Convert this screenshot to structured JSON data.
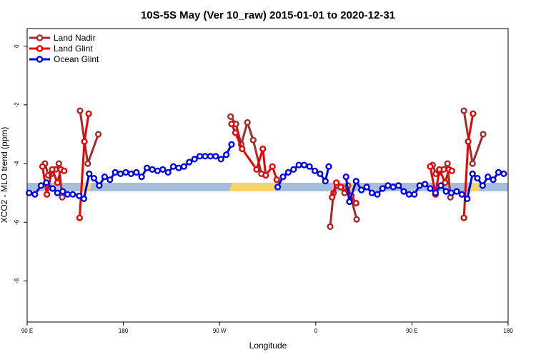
{
  "chart_data": {
    "type": "line",
    "title": "10S-5S May (Ver 10_raw)   2015-01-01 to 2020-12-31",
    "xlabel": "Longitude",
    "ylabel": "XCO2 - MLO trend (ppm)",
    "xlim": [
      0,
      100
    ],
    "ylim": [
      -9.4,
      0.6
    ],
    "x_ticks": [
      {
        "pos": 0,
        "label": "90 E"
      },
      {
        "pos": 20,
        "label": "180"
      },
      {
        "pos": 40,
        "label": "90 W"
      },
      {
        "pos": 60,
        "label": "0"
      },
      {
        "pos": 80,
        "label": "90 E"
      },
      {
        "pos": 100,
        "label": "180"
      }
    ],
    "y_ticks": [
      0,
      -2,
      -4,
      -6,
      -8
    ],
    "legend_position": "top-left",
    "grid": false,
    "band": {
      "y": -4.8,
      "color": "#a5bedb",
      "highlight_color": "#f5d56a",
      "highlights": [
        [
          11.0,
          13.5
        ],
        [
          42.0,
          52.0
        ],
        [
          66.0,
          68.0
        ],
        [
          92.0,
          94.5
        ]
      ]
    },
    "series": [
      {
        "name": "Land Nadir",
        "color": "#a52a2a",
        "segments": [
          [
            [
              3.7,
              -4.0
            ],
            [
              4.4,
              -4.4
            ],
            [
              5.1,
              -4.35
            ],
            [
              5.9,
              -4.2
            ],
            [
              6.6,
              -4.0
            ],
            [
              7.3,
              -5.15
            ]
          ],
          [
            [
              11.0,
              -2.2
            ],
            [
              12.6,
              -4.0
            ],
            [
              14.8,
              -3.0
            ]
          ],
          [
            [
              42.3,
              -2.4
            ],
            [
              43.4,
              -2.65
            ],
            [
              44.5,
              -3.35
            ],
            [
              45.8,
              -2.6
            ],
            [
              47.0,
              -3.2
            ],
            [
              48.7,
              -4.35
            ]
          ],
          [
            [
              63.0,
              -6.15
            ],
            [
              63.7,
              -5.0
            ],
            [
              64.4,
              -4.75
            ],
            [
              65.3,
              -4.8
            ],
            [
              66.0,
              -5.0
            ],
            [
              66.7,
              -4.75
            ],
            [
              68.5,
              -5.9
            ]
          ],
          [
            [
              84.3,
              -4.05
            ],
            [
              85.0,
              -4.35
            ],
            [
              85.7,
              -4.3
            ],
            [
              86.6,
              -4.2
            ],
            [
              87.4,
              -4.0
            ],
            [
              88.0,
              -5.15
            ]
          ],
          [
            [
              90.8,
              -2.2
            ],
            [
              92.6,
              -4.0
            ],
            [
              94.8,
              -3.0
            ]
          ]
        ]
      },
      {
        "name": "Land Glint",
        "color": "#ee0000",
        "segments": [
          [
            [
              3.2,
              -4.1
            ],
            [
              4.1,
              -5.05
            ],
            [
              5.2,
              -4.2
            ],
            [
              6.3,
              -4.65
            ],
            [
              7.0,
              -4.2
            ],
            [
              7.7,
              -4.25
            ]
          ],
          [
            [
              10.9,
              -5.85
            ],
            [
              11.9,
              -3.25
            ],
            [
              12.8,
              -2.3
            ]
          ],
          [
            [
              42.5,
              -2.65
            ],
            [
              43.3,
              -2.95
            ],
            [
              44.7,
              -3.5
            ],
            [
              47.7,
              -4.2
            ],
            [
              49.0,
              -3.5
            ],
            [
              49.6,
              -4.4
            ],
            [
              51.0,
              -4.1
            ],
            [
              51.9,
              -4.55
            ]
          ],
          [
            [
              63.4,
              -5.15
            ],
            [
              64.3,
              -4.65
            ],
            [
              65.2,
              -4.8
            ],
            [
              67.4,
              -5.1
            ],
            [
              68.4,
              -5.35
            ]
          ],
          [
            [
              83.8,
              -4.1
            ],
            [
              84.9,
              -5.05
            ],
            [
              85.7,
              -4.2
            ],
            [
              86.9,
              -4.65
            ],
            [
              87.7,
              -4.2
            ],
            [
              88.3,
              -4.25
            ]
          ],
          [
            [
              90.8,
              -5.85
            ],
            [
              91.7,
              -3.25
            ],
            [
              92.7,
              -2.3
            ]
          ]
        ]
      },
      {
        "name": "Ocean Glint",
        "color": "#0000ee",
        "segments": [
          [
            [
              0.4,
              -5.0
            ],
            [
              1.6,
              -5.05
            ],
            [
              2.9,
              -4.75
            ],
            [
              4.0,
              -4.65
            ],
            [
              5.3,
              -4.85
            ],
            [
              6.3,
              -5.0
            ],
            [
              7.4,
              -4.95
            ],
            [
              8.4,
              -5.05
            ],
            [
              9.5,
              -5.05
            ],
            [
              10.8,
              -5.1
            ],
            [
              11.8,
              -5.2
            ],
            [
              12.9,
              -4.35
            ],
            [
              13.9,
              -4.5
            ],
            [
              15.0,
              -4.75
            ],
            [
              16.1,
              -4.45
            ],
            [
              17.2,
              -4.55
            ],
            [
              18.3,
              -4.3
            ],
            [
              19.4,
              -4.35
            ],
            [
              20.5,
              -4.3
            ],
            [
              21.6,
              -4.35
            ],
            [
              22.7,
              -4.3
            ],
            [
              23.8,
              -4.45
            ],
            [
              24.9,
              -4.15
            ],
            [
              26.0,
              -4.2
            ],
            [
              27.1,
              -4.25
            ],
            [
              28.2,
              -4.2
            ],
            [
              29.3,
              -4.3
            ],
            [
              30.4,
              -4.1
            ],
            [
              31.5,
              -4.15
            ],
            [
              32.6,
              -4.1
            ],
            [
              33.7,
              -3.95
            ],
            [
              34.8,
              -3.85
            ],
            [
              35.9,
              -3.75
            ],
            [
              37.0,
              -3.75
            ],
            [
              38.1,
              -3.75
            ],
            [
              39.2,
              -3.75
            ],
            [
              40.3,
              -3.85
            ],
            [
              41.4,
              -3.7
            ],
            [
              42.5,
              -3.35
            ]
          ],
          [
            [
              52.1,
              -4.8
            ],
            [
              53.2,
              -4.45
            ],
            [
              54.3,
              -4.3
            ],
            [
              55.4,
              -4.2
            ],
            [
              56.5,
              -4.05
            ],
            [
              57.6,
              -4.05
            ],
            [
              58.7,
              -4.1
            ],
            [
              59.8,
              -4.25
            ],
            [
              60.9,
              -4.35
            ],
            [
              62.0,
              -4.6
            ],
            [
              62.7,
              -4.1
            ]
          ],
          [
            [
              66.3,
              -4.45
            ],
            [
              67.0,
              -5.3
            ],
            [
              68.4,
              -4.6
            ],
            [
              69.5,
              -4.9
            ],
            [
              70.6,
              -4.8
            ],
            [
              71.7,
              -5.0
            ],
            [
              72.8,
              -5.05
            ],
            [
              73.9,
              -4.85
            ],
            [
              75.0,
              -4.75
            ],
            [
              76.1,
              -4.8
            ],
            [
              77.2,
              -4.75
            ],
            [
              78.3,
              -4.95
            ],
            [
              79.4,
              -5.05
            ],
            [
              80.5,
              -5.05
            ],
            [
              81.6,
              -4.75
            ],
            [
              82.7,
              -4.7
            ],
            [
              83.8,
              -4.85
            ],
            [
              84.9,
              -5.0
            ],
            [
              86.0,
              -4.75
            ],
            [
              87.1,
              -4.95
            ],
            [
              88.2,
              -5.0
            ],
            [
              89.3,
              -4.95
            ],
            [
              90.4,
              -5.05
            ],
            [
              91.5,
              -5.2
            ],
            [
              92.6,
              -4.35
            ],
            [
              93.6,
              -4.5
            ],
            [
              94.7,
              -4.75
            ],
            [
              95.8,
              -4.45
            ],
            [
              96.9,
              -4.55
            ],
            [
              98.0,
              -4.3
            ],
            [
              99.1,
              -4.35
            ]
          ]
        ]
      }
    ]
  }
}
